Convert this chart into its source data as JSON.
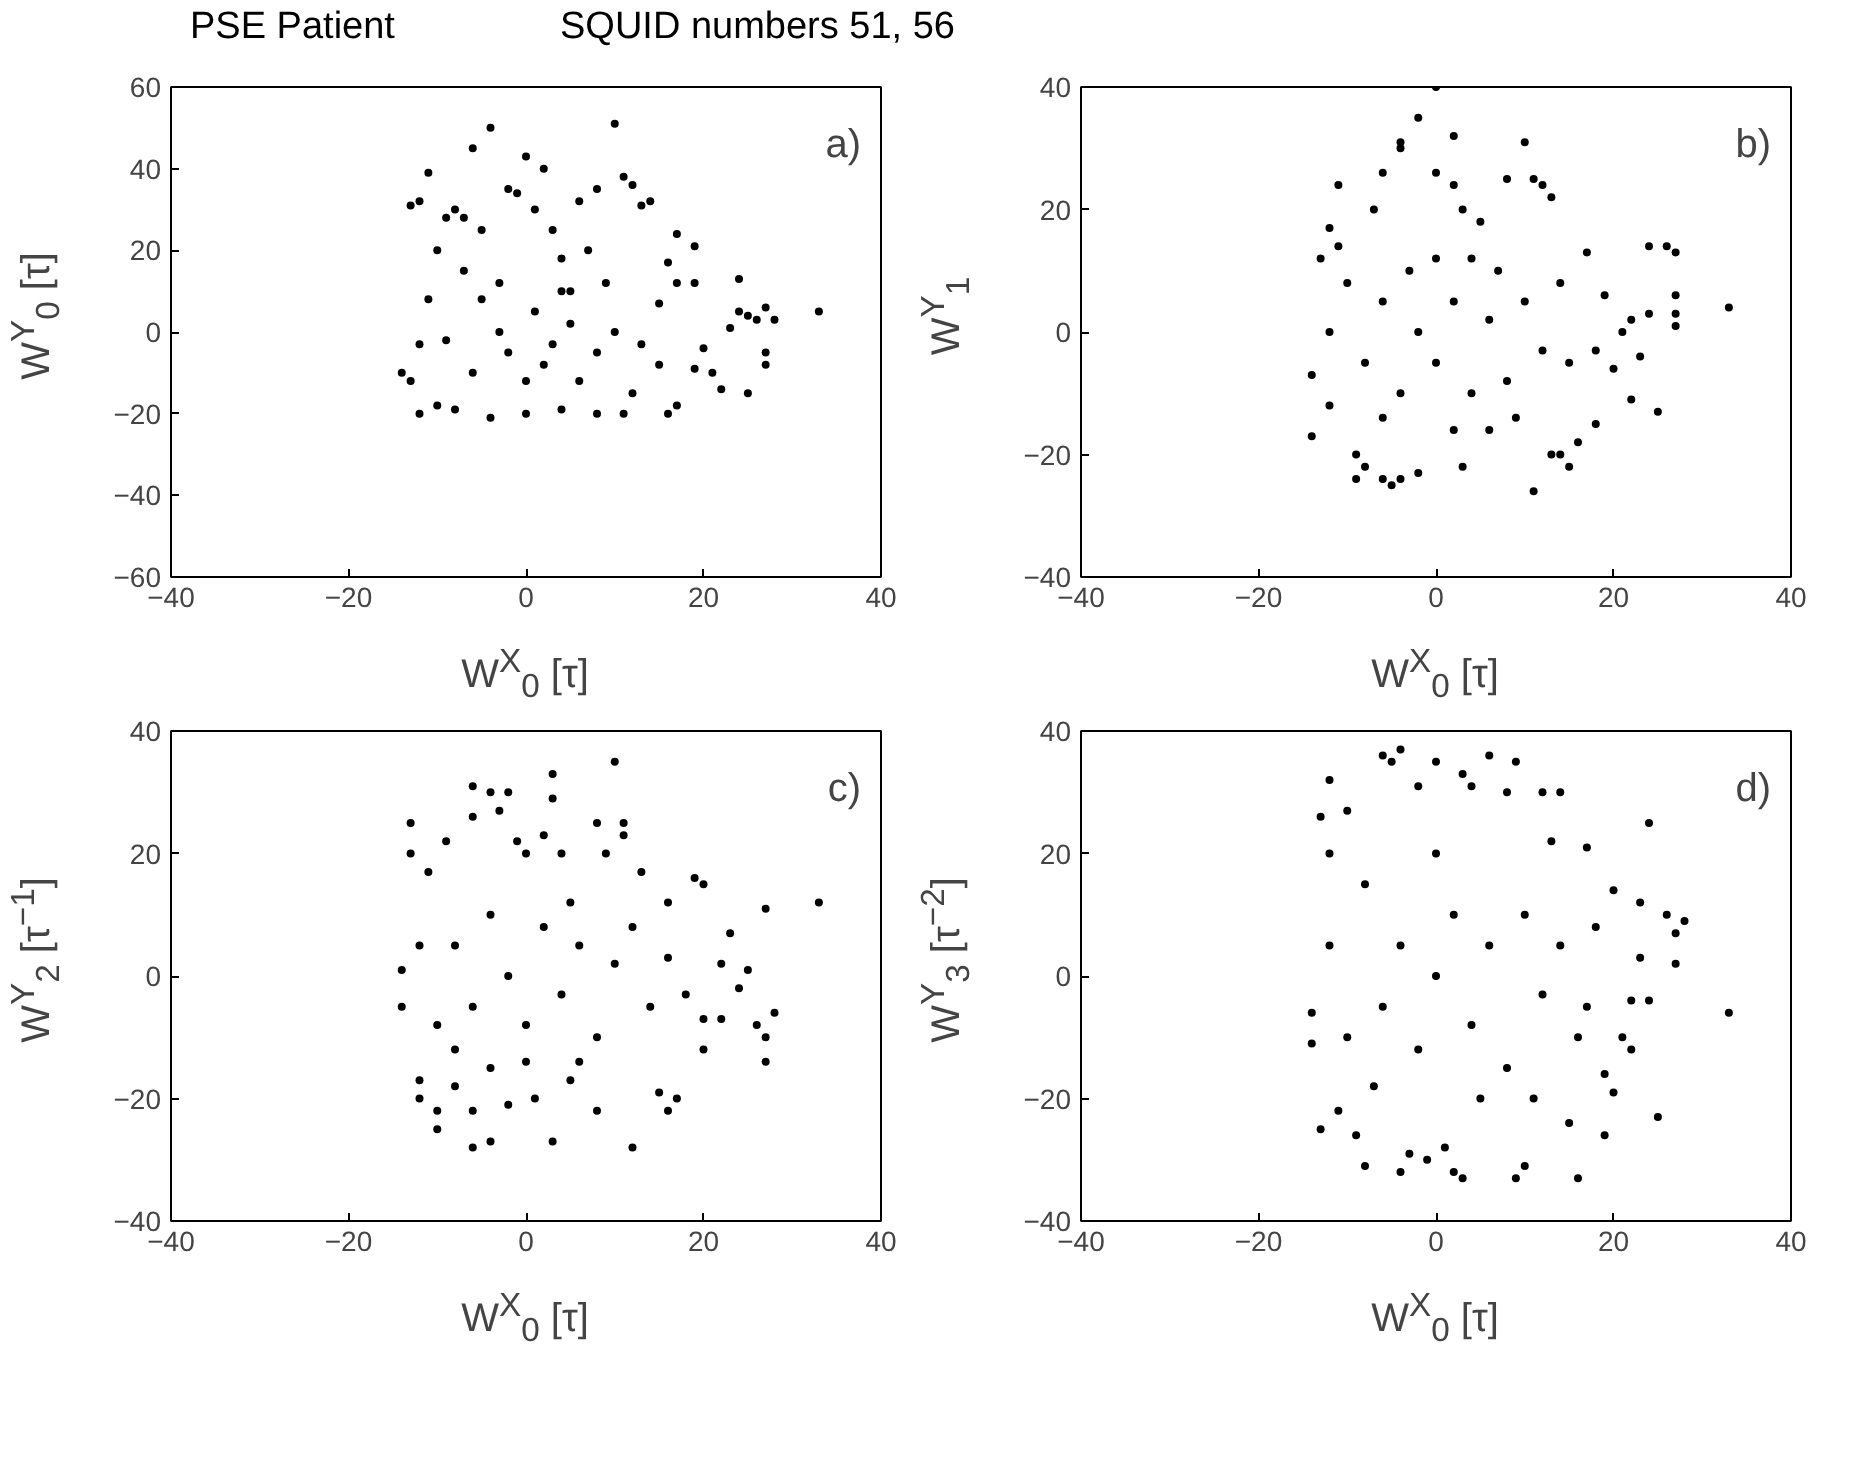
{
  "chart_data": [
    {
      "type": "scatter",
      "title": "PSE Patient",
      "subtitle": "SQUID numbers 51, 56",
      "xlabel": "W$^{X}$$_{0}$ [τ]",
      "ylabel": "W$^{Y}$$_{0}$ [τ]",
      "annotations": [
        "a)"
      ],
      "marker": "circle",
      "xlim": [
        -40,
        40
      ],
      "ylim": [
        -60,
        60
      ],
      "xticks": [
        -40,
        -20,
        0,
        20,
        40
      ],
      "yticks": [
        -60,
        -40,
        -20,
        0,
        20,
        40,
        60
      ],
      "series": [
        {
          "color": "#000000",
          "x": [
            -14,
            -13,
            -12,
            -13,
            -12,
            -11,
            -10,
            -9,
            -8,
            -7,
            -6,
            -5,
            -4,
            -3,
            -2,
            -1,
            0,
            1,
            2,
            3,
            4,
            5,
            6,
            7,
            8,
            10,
            11,
            12,
            13,
            14,
            17,
            19,
            17,
            19,
            16,
            15,
            20,
            21,
            22,
            23,
            24,
            24,
            25,
            25,
            26,
            27,
            28,
            27,
            27,
            33,
            -10,
            -8,
            -4,
            0,
            4,
            8,
            11,
            16,
            17,
            12,
            6,
            2,
            -2,
            -6,
            -9,
            -11,
            -7,
            -3,
            1,
            3,
            5,
            8,
            10,
            13,
            15,
            19,
            -12,
            -5,
            0,
            4,
            9
          ],
          "values": [
            -10,
            -12,
            -20,
            31,
            32,
            39,
            20,
            28,
            30,
            28,
            45,
            25,
            50,
            12,
            35,
            34,
            43,
            30,
            40,
            25,
            18,
            10,
            32,
            20,
            35,
            51,
            38,
            36,
            31,
            32,
            24,
            21,
            12,
            12,
            17,
            7,
            -4,
            -10,
            -14,
            1,
            13,
            5,
            4,
            -15,
            3,
            6,
            3,
            -5,
            -8,
            5,
            -18,
            -19,
            -21,
            -20,
            -19,
            -20,
            -20,
            -20,
            -18,
            -15,
            -12,
            -8,
            -5,
            -10,
            -2,
            8,
            15,
            0,
            5,
            -3,
            2,
            -5,
            0,
            -3,
            -8,
            -9,
            -3,
            8,
            -12,
            10,
            12
          ]
        }
      ]
    },
    {
      "type": "scatter",
      "xlabel": "W$^{X}$$_{0}$ [τ]",
      "ylabel": "W$^{Y}$$_{1}$",
      "annotations": [
        "b)"
      ],
      "marker": "circle",
      "xlim": [
        -40,
        40
      ],
      "ylim": [
        -40,
        40
      ],
      "xticks": [
        -40,
        -20,
        0,
        20,
        40
      ],
      "yticks": [
        -40,
        -20,
        0,
        20,
        40
      ],
      "series": [
        {
          "color": "#000000",
          "x": [
            -14,
            -14,
            -13,
            -12,
            -11,
            -11,
            -9,
            -9,
            -8,
            -7,
            -6,
            -6,
            -5,
            -4,
            -4,
            -4,
            -2,
            -2,
            0,
            0,
            0,
            2,
            2,
            3,
            3,
            5,
            8,
            10,
            11,
            12,
            13,
            11,
            13,
            14,
            15,
            17,
            16,
            18,
            19,
            20,
            21,
            22,
            22,
            23,
            24,
            24,
            25,
            26,
            27,
            27,
            27,
            27,
            33,
            -12,
            -10,
            -8,
            -6,
            -4,
            -2,
            0,
            2,
            4,
            6,
            8,
            10,
            12,
            14,
            15,
            18,
            -12,
            -6,
            2,
            6,
            9,
            -3,
            4,
            7
          ],
          "values": [
            -7,
            -17,
            12,
            17,
            24,
            14,
            -20,
            -24,
            -22,
            20,
            26,
            -24,
            -25,
            31,
            30,
            -24,
            35,
            -23,
            26,
            40,
            12,
            32,
            24,
            20,
            -22,
            18,
            25,
            31,
            25,
            24,
            22,
            -26,
            -20,
            -20,
            -22,
            13,
            -18,
            -15,
            6,
            -6,
            0,
            -11,
            2,
            -4,
            14,
            3,
            -13,
            14,
            13,
            6,
            3,
            1,
            4,
            0,
            8,
            -5,
            5,
            -10,
            0,
            -5,
            5,
            -10,
            2,
            -8,
            5,
            -3,
            8,
            -5,
            -3,
            -12,
            -14,
            -16,
            -16,
            -14,
            10,
            12,
            10
          ]
        }
      ]
    },
    {
      "type": "scatter",
      "xlabel": "W$^{X}$$_{0}$ [τ]",
      "ylabel": "W$^{Y}$$_{2}$ [τ$^{−1}$]",
      "annotations": [
        "c)"
      ],
      "marker": "circle",
      "xlim": [
        -40,
        40
      ],
      "ylim": [
        -40,
        40
      ],
      "xticks": [
        -40,
        -20,
        0,
        20,
        40
      ],
      "yticks": [
        -40,
        -20,
        0,
        20,
        40
      ],
      "series": [
        {
          "color": "#000000",
          "x": [
            -14,
            -14,
            -13,
            -13,
            -12,
            -12,
            -11,
            -10,
            -10,
            -9,
            -8,
            -6,
            -6,
            -6,
            -6,
            -4,
            -4,
            -3,
            -2,
            -2,
            -1,
            0,
            1,
            2,
            3,
            3,
            3,
            4,
            5,
            8,
            8,
            9,
            10,
            11,
            11,
            12,
            13,
            15,
            16,
            16,
            17,
            19,
            20,
            20,
            20,
            22,
            22,
            23,
            24,
            25,
            26,
            27,
            27,
            27,
            28,
            33,
            -12,
            -10,
            -8,
            -6,
            -4,
            -2,
            0,
            2,
            4,
            6,
            8,
            10,
            12,
            14,
            16,
            18,
            -8,
            0,
            6,
            -4,
            5
          ],
          "values": [
            1,
            -5,
            25,
            20,
            -17,
            -20,
            17,
            -25,
            -22,
            22,
            -18,
            31,
            26,
            -28,
            -22,
            30,
            -27,
            27,
            30,
            -21,
            22,
            20,
            -20,
            23,
            33,
            29,
            -27,
            20,
            -17,
            25,
            -22,
            20,
            35,
            25,
            23,
            -28,
            17,
            -19,
            -22,
            12,
            -20,
            16,
            15,
            -12,
            -7,
            2,
            -7,
            7,
            -2,
            1,
            -8,
            11,
            -10,
            -14,
            -6,
            12,
            5,
            -8,
            5,
            -5,
            10,
            0,
            -8,
            8,
            -3,
            5,
            -10,
            2,
            8,
            -5,
            3,
            -3,
            -12,
            -14,
            -14,
            -15,
            12
          ]
        }
      ]
    },
    {
      "type": "scatter",
      "xlabel": "W$^{X}$$_{0}$ [τ]",
      "ylabel": "W$^{Y}$$_{3}$ [τ$^{−2}$]",
      "annotations": [
        "d)"
      ],
      "marker": "circle",
      "xlim": [
        -40,
        40
      ],
      "ylim": [
        -40,
        40
      ],
      "xticks": [
        -40,
        -20,
        0,
        20,
        40
      ],
      "yticks": [
        -40,
        -20,
        0,
        20,
        40
      ],
      "series": [
        {
          "color": "#000000",
          "x": [
            -14,
            -14,
            -13,
            -13,
            -12,
            -11,
            -10,
            -9,
            -8,
            -6,
            -5,
            -4,
            -4,
            -3,
            -2,
            -1,
            0,
            1,
            2,
            3,
            3,
            4,
            6,
            8,
            9,
            9,
            10,
            12,
            13,
            14,
            16,
            17,
            15,
            19,
            19,
            20,
            20,
            21,
            22,
            22,
            23,
            23,
            24,
            24,
            25,
            26,
            27,
            27,
            28,
            33,
            -12,
            -10,
            -8,
            -6,
            -4,
            -2,
            0,
            2,
            4,
            6,
            8,
            10,
            12,
            14,
            16,
            18,
            -12,
            -7,
            0,
            5,
            11,
            17
          ],
          "values": [
            -6,
            -11,
            -25,
            26,
            32,
            -22,
            27,
            -26,
            -31,
            36,
            35,
            37,
            -32,
            -29,
            31,
            -30,
            35,
            -28,
            -32,
            33,
            -33,
            31,
            36,
            30,
            35,
            -33,
            -31,
            30,
            22,
            30,
            -33,
            21,
            -24,
            -26,
            -16,
            14,
            -19,
            -10,
            -12,
            -4,
            3,
            12,
            25,
            -4,
            -23,
            10,
            2,
            7,
            9,
            -6,
            5,
            -10,
            15,
            -5,
            5,
            -12,
            0,
            10,
            -8,
            5,
            -15,
            10,
            -3,
            5,
            -10,
            8,
            20,
            -18,
            20,
            -20,
            -20,
            -5
          ]
        }
      ]
    }
  ]
}
